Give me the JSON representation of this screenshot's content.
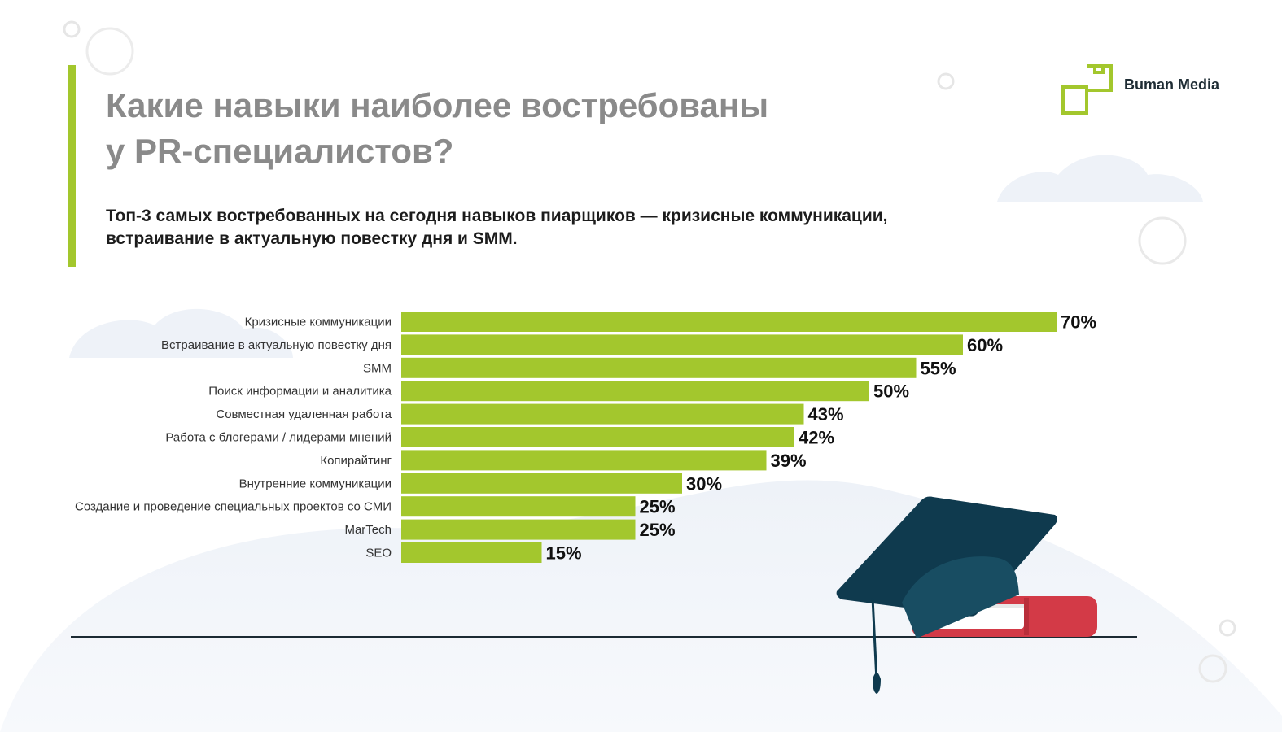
{
  "header": {
    "title_line1": "Какие навыки наиболее востребованы",
    "title_line2": "у PR-специалистов?",
    "subtitle_line1": "Топ-3 самых востребованных на сегодня навыков пиарщиков — кризисные коммуникации,",
    "subtitle_line2": "встраивание в актуальную повестку дня и SMM."
  },
  "brand": {
    "name": "Buman Media"
  },
  "colors": {
    "bar": "#a3c72d",
    "accent": "#a3c72d",
    "title": "#8a8a8a",
    "cap": "#0f3a4e",
    "book": "#d33a47"
  },
  "chart_data": {
    "type": "bar",
    "orientation": "horizontal",
    "categories": [
      "Кризисные коммуникации",
      "Встраивание в актуальную повестку дня",
      "SMM",
      "Поиск информации и аналитика",
      "Совместная удаленная работа",
      "Работа с блогерами / лидерами мнений",
      "Копирайтинг",
      "Внутренние коммуникации",
      "Создание и проведение специальных проектов со СМИ",
      "MarTech",
      "SEO"
    ],
    "values": [
      70,
      60,
      55,
      50,
      43,
      42,
      39,
      30,
      25,
      25,
      15
    ],
    "value_labels": [
      "70%",
      "60%",
      "55%",
      "50%",
      "43%",
      "42%",
      "39%",
      "30%",
      "25%",
      "25%",
      "15%"
    ],
    "unit": "%",
    "xlim": [
      0,
      70
    ],
    "grid": false,
    "legend": "none"
  }
}
